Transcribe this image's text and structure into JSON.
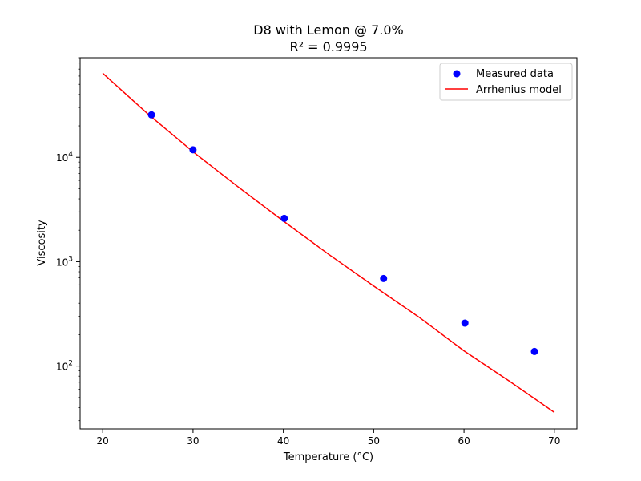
{
  "chart_data": {
    "type": "scatter",
    "title": "D8 with Lemon @ 7.0%",
    "subtitle": "R² = 0.9995",
    "xlabel": "Temperature (°C)",
    "ylabel": "Viscosity",
    "xlim": [
      17.5,
      72.5
    ],
    "ylim": [
      25,
      90000
    ],
    "yscale": "log",
    "grid": false,
    "legend_position": "top-right",
    "x_ticks": [
      20,
      30,
      40,
      50,
      60,
      70
    ],
    "x_tick_labels": [
      "20",
      "30",
      "40",
      "50",
      "60",
      "70"
    ],
    "y_ticks": [
      {
        "value": 100,
        "base": "10",
        "exp": "2"
      },
      {
        "value": 1000,
        "base": "10",
        "exp": "3"
      },
      {
        "value": 10000,
        "base": "10",
        "exp": "4"
      }
    ],
    "series": [
      {
        "name": "Measured data",
        "kind": "scatter",
        "color": "#0000ff",
        "x": [
          25.4,
          30.0,
          40.1,
          51.1,
          60.1,
          67.8
        ],
        "y": [
          25500,
          11800,
          2600,
          690,
          258,
          138
        ]
      },
      {
        "name": "Arrhenius model",
        "kind": "line",
        "color": "#ff0000",
        "x": [
          20,
          25,
          30,
          35,
          40,
          45,
          50,
          55,
          60,
          65,
          70
        ],
        "y": [
          64000,
          26000,
          11300,
          5200,
          2450,
          1180,
          585,
          295,
          140,
          72,
          36
        ]
      }
    ]
  }
}
